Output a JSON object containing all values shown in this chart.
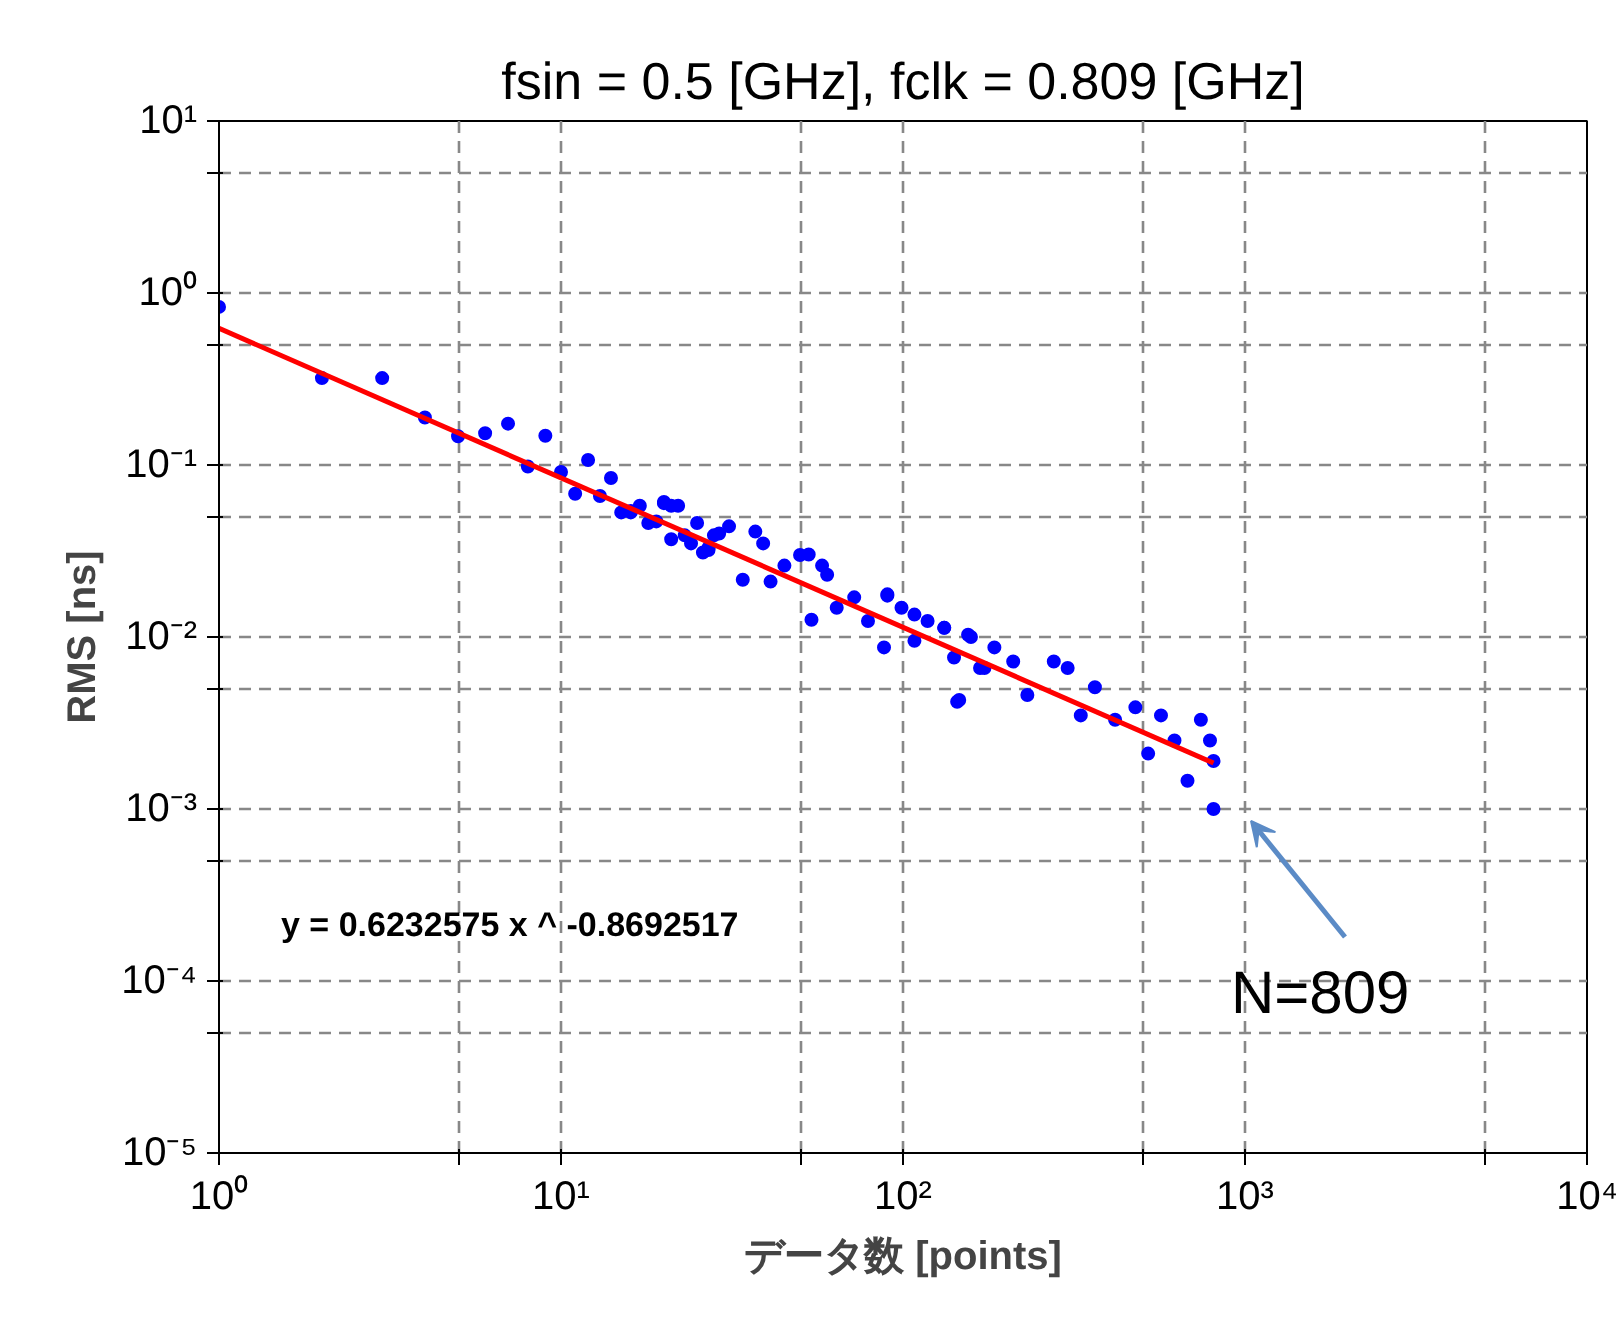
{
  "chart_data": {
    "type": "scatter",
    "title": "fsin = 0.5 [GHz], fclk = 0.809 [GHz]",
    "xlabel": "データ数 [points]",
    "ylabel": "RMS [ns]",
    "log": "xy",
    "grid": true,
    "xlim": [
      1,
      10000
    ],
    "ylim": [
      1e-05,
      10
    ],
    "xticks": [
      {
        "value": 1,
        "label": "10⁰"
      },
      {
        "value": 5,
        "label": null
      },
      {
        "value": 10,
        "label": "10¹"
      },
      {
        "value": 50,
        "label": null
      },
      {
        "value": 100,
        "label": "10²"
      },
      {
        "value": 500,
        "label": null
      },
      {
        "value": 1000,
        "label": "10³"
      },
      {
        "value": 5000,
        "label": null
      },
      {
        "value": 10000,
        "label": "10⁴"
      }
    ],
    "yticks": [
      {
        "value": 1e-05,
        "label": "10⁻⁵"
      },
      {
        "value": 5e-05,
        "label": null
      },
      {
        "value": 0.0001,
        "label": "10⁻⁴"
      },
      {
        "value": 0.0005,
        "label": null
      },
      {
        "value": 0.001,
        "label": "10⁻³"
      },
      {
        "value": 0.005,
        "label": null
      },
      {
        "value": 0.01,
        "label": "10⁻²"
      },
      {
        "value": 0.05,
        "label": null
      },
      {
        "value": 0.1,
        "label": "10⁻¹"
      },
      {
        "value": 0.5,
        "label": null
      },
      {
        "value": 1,
        "label": "10⁰"
      },
      {
        "value": 5,
        "label": null
      },
      {
        "value": 10,
        "label": "10¹"
      }
    ],
    "series": [
      {
        "marker": "circle",
        "color": "#0000ff",
        "x": [
          1,
          2,
          3,
          4,
          5,
          6,
          7,
          8,
          9,
          10,
          11,
          12,
          13,
          14,
          15,
          16,
          16,
          17,
          18,
          19,
          20,
          20,
          21,
          21,
          22,
          23,
          24,
          25,
          26,
          27,
          27,
          28,
          29,
          31,
          34,
          37,
          39,
          41,
          45,
          50,
          53,
          54,
          58,
          60,
          64,
          72,
          79,
          88,
          90,
          90,
          99,
          108,
          108,
          118,
          132,
          132,
          141,
          144,
          146,
          155,
          158,
          168,
          173,
          185,
          210,
          231,
          276,
          303,
          331,
          364,
          417,
          478,
          521,
          568,
          622,
          679,
          743,
          790,
          809,
          809
        ],
        "values": [
          0.83,
          0.32,
          0.32,
          0.189,
          0.147,
          0.153,
          0.174,
          0.098,
          0.148,
          0.091,
          0.068,
          0.107,
          0.066,
          0.084,
          0.053,
          0.053,
          0.054,
          0.058,
          0.046,
          0.047,
          0.061,
          0.06,
          0.037,
          0.058,
          0.058,
          0.039,
          0.035,
          0.046,
          0.031,
          0.032,
          0.033,
          0.039,
          0.04,
          0.044,
          0.0215,
          0.041,
          0.035,
          0.021,
          0.026,
          0.03,
          0.0302,
          0.0126,
          0.026,
          0.023,
          0.0148,
          0.017,
          0.0124,
          0.0087,
          0.0174,
          0.0177,
          0.0148,
          0.0095,
          0.0135,
          0.0124,
          0.0113,
          0.0113,
          0.0076,
          0.0042,
          0.0043,
          0.0103,
          0.01,
          0.0066,
          0.0066,
          0.0087,
          0.0072,
          0.0046,
          0.0072,
          0.0066,
          0.0035,
          0.0051,
          0.0033,
          0.0039,
          0.0021,
          0.0035,
          0.0025,
          0.00146,
          0.0033,
          0.0025,
          0.001,
          0.0019
        ]
      },
      {
        "type": "line",
        "color": "#ff0000",
        "x": [
          1,
          809
        ],
        "values": [
          0.623,
          0.00185
        ]
      }
    ],
    "annotations": [
      "y = 0.6232575 x ^ -0.8692517",
      "N=809"
    ]
  }
}
